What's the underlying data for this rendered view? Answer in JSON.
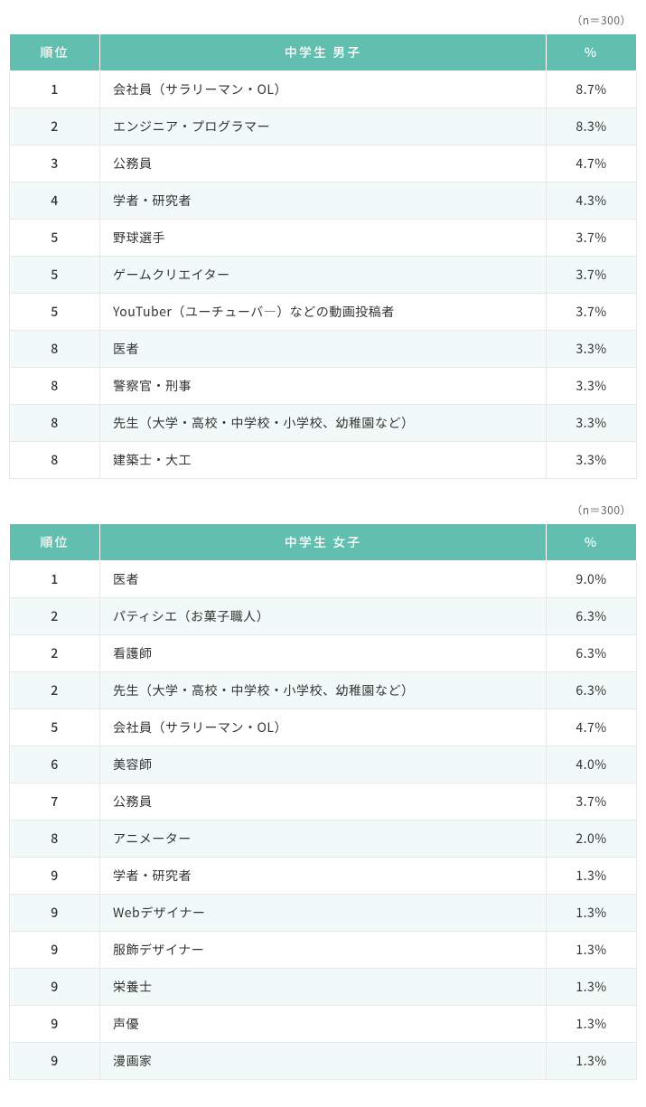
{
  "header_bg": "#62bfaf",
  "header_fg": "#ffffff",
  "row_alt_bg": "#f1faf8",
  "border_color": "#e8e8e8",
  "tables": [
    {
      "n_label": "（n＝300）",
      "columns": {
        "rank": "順位",
        "name": "中学生 男子",
        "pct": "%"
      },
      "rows": [
        {
          "rank": "1",
          "name": "会社員（サラリーマン・OL）",
          "pct": "8.7%"
        },
        {
          "rank": "2",
          "name": "エンジニア・プログラマー",
          "pct": "8.3%"
        },
        {
          "rank": "3",
          "name": "公務員",
          "pct": "4.7%"
        },
        {
          "rank": "4",
          "name": "学者・研究者",
          "pct": "4.3%"
        },
        {
          "rank": "5",
          "name": "野球選手",
          "pct": "3.7%"
        },
        {
          "rank": "5",
          "name": "ゲームクリエイター",
          "pct": "3.7%"
        },
        {
          "rank": "5",
          "name": "YouTuber（ユーチューバ―）などの動画投稿者",
          "pct": "3.7%"
        },
        {
          "rank": "8",
          "name": "医者",
          "pct": "3.3%"
        },
        {
          "rank": "8",
          "name": "警察官・刑事",
          "pct": "3.3%"
        },
        {
          "rank": "8",
          "name": "先生（大学・高校・中学校・小学校、幼稚園など）",
          "pct": "3.3%"
        },
        {
          "rank": "8",
          "name": "建築士・大工",
          "pct": "3.3%"
        }
      ]
    },
    {
      "n_label": "（n＝300）",
      "columns": {
        "rank": "順位",
        "name": "中学生 女子",
        "pct": "%"
      },
      "rows": [
        {
          "rank": "1",
          "name": "医者",
          "pct": "9.0%"
        },
        {
          "rank": "2",
          "name": "パティシエ（お菓子職人）",
          "pct": "6.3%"
        },
        {
          "rank": "2",
          "name": "看護師",
          "pct": "6.3%"
        },
        {
          "rank": "2",
          "name": "先生（大学・高校・中学校・小学校、幼稚園など）",
          "pct": "6.3%"
        },
        {
          "rank": "5",
          "name": "会社員（サラリーマン・OL）",
          "pct": "4.7%"
        },
        {
          "rank": "6",
          "name": "美容師",
          "pct": "4.0%"
        },
        {
          "rank": "7",
          "name": "公務員",
          "pct": "3.7%"
        },
        {
          "rank": "8",
          "name": "アニメーター",
          "pct": "2.0%"
        },
        {
          "rank": "9",
          "name": "学者・研究者",
          "pct": "1.3%"
        },
        {
          "rank": "9",
          "name": "Webデザイナー",
          "pct": "1.3%"
        },
        {
          "rank": "9",
          "name": "服飾デザイナー",
          "pct": "1.3%"
        },
        {
          "rank": "9",
          "name": "栄養士",
          "pct": "1.3%"
        },
        {
          "rank": "9",
          "name": "声優",
          "pct": "1.3%"
        },
        {
          "rank": "9",
          "name": "漫画家",
          "pct": "1.3%"
        }
      ]
    }
  ]
}
